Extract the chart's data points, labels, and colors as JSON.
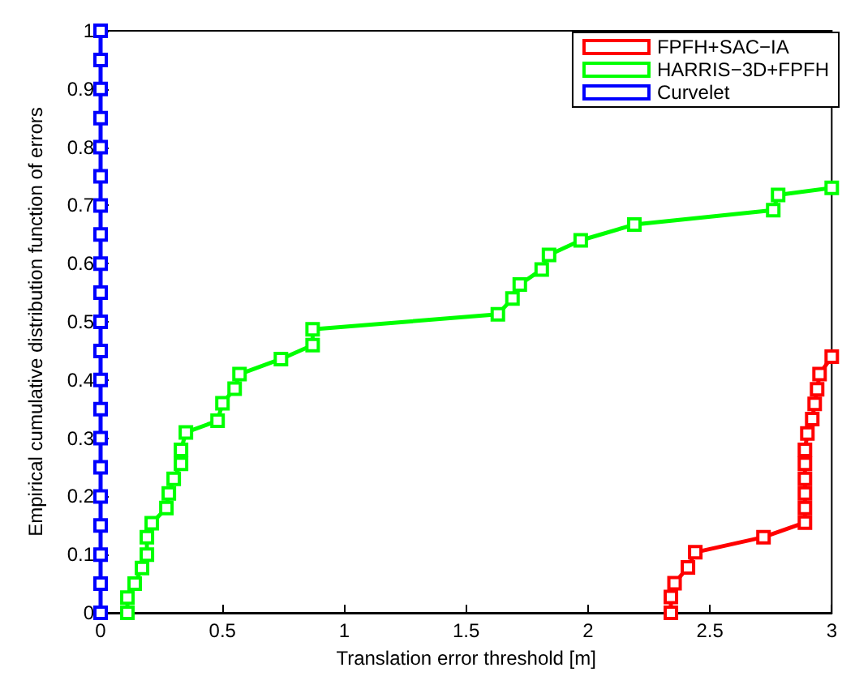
{
  "chart_data": {
    "type": "line",
    "xlabel": "Translation error threshold [m]",
    "ylabel": "Empirical cumulative distribution function of errors",
    "xlim": [
      0,
      3
    ],
    "ylim": [
      0,
      1
    ],
    "xticks": [
      0,
      0.5,
      1,
      1.5,
      2,
      2.5,
      3
    ],
    "yticks": [
      0,
      0.1,
      0.2,
      0.3,
      0.4,
      0.5,
      0.6,
      0.7,
      0.8,
      0.9,
      1
    ],
    "grid": false,
    "legend": "top right",
    "marker": "square",
    "line_style": "solid",
    "series": [
      {
        "name": "FPFH+SAC−IA",
        "color": "#ff0000",
        "x": [
          2.34,
          2.34,
          2.355,
          2.41,
          2.44,
          2.72,
          2.89,
          2.89,
          2.89,
          2.89,
          2.89,
          2.89,
          2.9,
          2.92,
          2.93,
          2.94,
          2.95,
          3
        ],
        "values": [
          0,
          0.027,
          0.051,
          0.078,
          0.104,
          0.13,
          0.155,
          0.18,
          0.205,
          0.23,
          0.256,
          0.28,
          0.308,
          0.333,
          0.359,
          0.384,
          0.41,
          0.44
        ]
      },
      {
        "name": "HARRIS−3D+FPFH",
        "color": "#00ff00",
        "x": [
          0.11,
          0.11,
          0.14,
          0.17,
          0.19,
          0.19,
          0.21,
          0.27,
          0.28,
          0.3,
          0.33,
          0.33,
          0.35,
          0.48,
          0.5,
          0.55,
          0.57,
          0.74,
          0.87,
          0.87,
          1.63,
          1.69,
          1.72,
          1.81,
          1.84,
          1.97,
          2.19,
          2.76,
          2.78,
          3
        ],
        "values": [
          0,
          0.026,
          0.05,
          0.077,
          0.1,
          0.13,
          0.154,
          0.18,
          0.205,
          0.23,
          0.256,
          0.28,
          0.31,
          0.33,
          0.36,
          0.385,
          0.41,
          0.436,
          0.46,
          0.487,
          0.513,
          0.54,
          0.564,
          0.59,
          0.615,
          0.64,
          0.667,
          0.692,
          0.718,
          0.73
        ]
      },
      {
        "name": "Curvelet",
        "color": "#0000ff",
        "x": [
          0,
          0,
          0,
          0,
          0,
          0,
          0,
          0,
          0,
          0,
          0,
          0,
          0,
          0,
          0,
          0,
          0,
          0,
          0,
          0,
          0
        ],
        "values": [
          0,
          0.05,
          0.1,
          0.15,
          0.2,
          0.25,
          0.3,
          0.35,
          0.4,
          0.45,
          0.5,
          0.55,
          0.6,
          0.65,
          0.7,
          0.75,
          0.8,
          0.85,
          0.9,
          0.95,
          1
        ]
      }
    ]
  }
}
